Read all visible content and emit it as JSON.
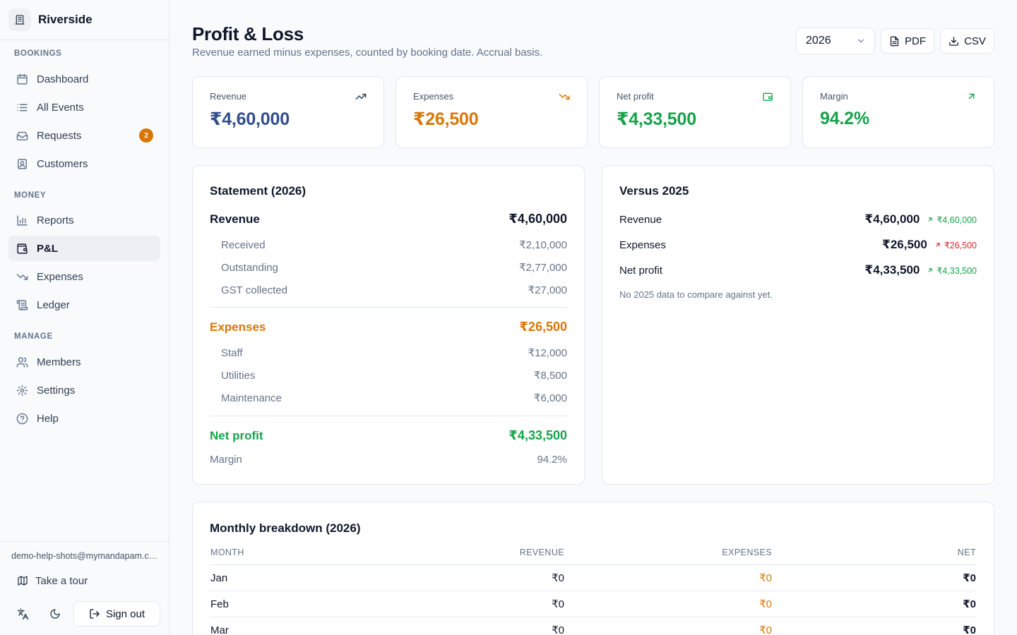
{
  "brand": {
    "name": "Riverside"
  },
  "sidebar": {
    "sections": [
      {
        "label": "BOOKINGS"
      },
      {
        "label": "MONEY"
      },
      {
        "label": "MANAGE"
      }
    ],
    "items": [
      {
        "label": "Dashboard",
        "icon": "calendar-icon"
      },
      {
        "label": "All Events",
        "icon": "list-icon"
      },
      {
        "label": "Requests",
        "icon": "inbox-icon",
        "badge": "2"
      },
      {
        "label": "Customers",
        "icon": "contacts-icon"
      },
      {
        "label": "Reports",
        "icon": "bar-chart-icon"
      },
      {
        "label": "P&L",
        "icon": "wallet-icon",
        "active": true
      },
      {
        "label": "Expenses",
        "icon": "trending-down-icon"
      },
      {
        "label": "Ledger",
        "icon": "scroll-icon"
      },
      {
        "label": "Members",
        "icon": "users-icon"
      },
      {
        "label": "Settings",
        "icon": "gear-icon"
      },
      {
        "label": "Help",
        "icon": "help-circle-icon"
      }
    ],
    "footer": {
      "email": "demo-help-shots@mymandapam.com",
      "tour_label": "Take a tour",
      "signout_label": "Sign out"
    }
  },
  "header": {
    "title": "Profit & Loss",
    "subtitle": "Revenue earned minus expenses, counted by booking date. Accrual basis.",
    "year": "2026",
    "pdf_label": "PDF",
    "csv_label": "CSV"
  },
  "kpis": [
    {
      "label": "Revenue",
      "value": "₹4,60,000",
      "color": "#334e8a",
      "icon": "trending-up-icon"
    },
    {
      "label": "Expenses",
      "value": "₹26,500",
      "color": "#d97706",
      "icon": "trending-down-icon"
    },
    {
      "label": "Net profit",
      "value": "₹4,33,500",
      "color": "#16a34a",
      "icon": "wallet-icon"
    },
    {
      "label": "Margin",
      "value": "94.2%",
      "color": "#16a34a",
      "icon": "arrow-up-right-icon"
    }
  ],
  "statement": {
    "title": "Statement (2026)",
    "revenue": {
      "label": "Revenue",
      "value": "₹4,60,000"
    },
    "revenue_items": [
      {
        "label": "Received",
        "value": "₹2,10,000"
      },
      {
        "label": "Outstanding",
        "value": "₹2,77,000"
      },
      {
        "label": "GST collected",
        "value": "₹27,000"
      }
    ],
    "expenses": {
      "label": "Expenses",
      "value": "₹26,500"
    },
    "expense_items": [
      {
        "label": "Staff",
        "value": "₹12,000"
      },
      {
        "label": "Utilities",
        "value": "₹8,500"
      },
      {
        "label": "Maintenance",
        "value": "₹6,000"
      }
    ],
    "net": {
      "label": "Net profit",
      "value": "₹4,33,500"
    },
    "margin": {
      "label": "Margin",
      "value": "94.2%"
    }
  },
  "versus": {
    "title": "Versus 2025",
    "rows": [
      {
        "label": "Revenue",
        "value": "₹4,60,000",
        "delta": "₹4,60,000",
        "delta_color": "#16a34a"
      },
      {
        "label": "Expenses",
        "value": "₹26,500",
        "delta": "₹26,500",
        "delta_color": "#dc2626"
      },
      {
        "label": "Net profit",
        "value": "₹4,33,500",
        "delta": "₹4,33,500",
        "delta_color": "#16a34a"
      }
    ],
    "note": "No 2025 data to compare against yet."
  },
  "monthly": {
    "title": "Monthly breakdown (2026)",
    "columns": [
      "MONTH",
      "REVENUE",
      "EXPENSES",
      "NET"
    ],
    "rows": [
      {
        "month": "Jan",
        "revenue": "₹0",
        "expenses": "₹0",
        "net": "₹0"
      },
      {
        "month": "Feb",
        "revenue": "₹0",
        "expenses": "₹0",
        "net": "₹0"
      },
      {
        "month": "Mar",
        "revenue": "₹0",
        "expenses": "₹0",
        "net": "₹0"
      }
    ]
  },
  "colors": {
    "revenue": "#334e8a",
    "expenses": "#d97706",
    "profit": "#16a34a",
    "loss": "#dc2626"
  }
}
